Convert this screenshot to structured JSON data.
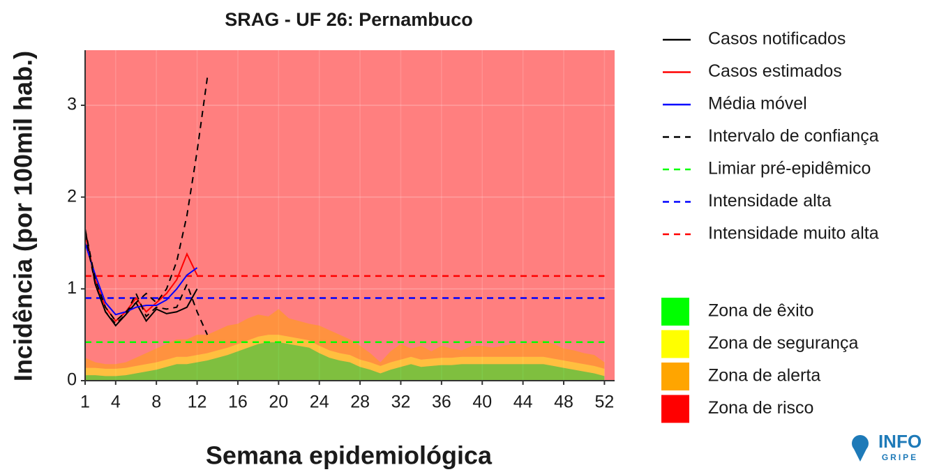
{
  "chart_data": {
    "type": "line",
    "title": "SRAG - UF 26: Pernambuco",
    "xlabel": "Semana epidemiológica",
    "ylabel": "Incidência (por 100mil hab.)",
    "x": [
      1,
      2,
      3,
      4,
      5,
      6,
      7,
      8,
      9,
      10,
      11,
      12,
      13,
      14,
      15,
      16,
      17,
      18,
      19,
      20,
      21,
      22,
      23,
      24,
      25,
      26,
      27,
      28,
      29,
      30,
      31,
      32,
      33,
      34,
      35,
      36,
      37,
      38,
      39,
      40,
      41,
      42,
      43,
      44,
      45,
      46,
      47,
      48,
      49,
      50,
      51,
      52
    ],
    "xlim": [
      1,
      53
    ],
    "xticks": [
      1,
      4,
      8,
      12,
      16,
      20,
      24,
      28,
      32,
      36,
      40,
      44,
      48,
      52
    ],
    "ylim": [
      0,
      3.6
    ],
    "yticks": [
      0,
      1,
      2,
      3
    ],
    "grid": true,
    "legend": "right",
    "series": [
      {
        "name": "Casos notificados",
        "color": "#000000",
        "dashed": false,
        "values": [
          1.65,
          1.05,
          0.75,
          0.6,
          0.72,
          0.85,
          0.65,
          0.78,
          0.73,
          0.75,
          0.8,
          1.0,
          null,
          null,
          null,
          null,
          null,
          null,
          null,
          null,
          null,
          null,
          null,
          null,
          null,
          null,
          null,
          null,
          null,
          null,
          null,
          null,
          null,
          null,
          null,
          null,
          null,
          null,
          null,
          null,
          null,
          null,
          null,
          null,
          null,
          null,
          null,
          null,
          null,
          null,
          null,
          null
        ]
      },
      {
        "name": "Casos estimados",
        "color": "#ff0000",
        "dashed": false,
        "values": [
          1.6,
          1.1,
          0.8,
          0.65,
          0.75,
          0.9,
          0.75,
          0.85,
          0.95,
          1.1,
          1.38,
          1.15,
          null,
          null,
          null,
          null,
          null,
          null,
          null,
          null,
          null,
          null,
          null,
          null,
          null,
          null,
          null,
          null,
          null,
          null,
          null,
          null,
          null,
          null,
          null,
          null,
          null,
          null,
          null,
          null,
          null,
          null,
          null,
          null,
          null,
          null,
          null,
          null,
          null,
          null,
          null,
          null
        ]
      },
      {
        "name": "Média móvel",
        "color": "#0000ff",
        "dashed": false,
        "values": [
          1.5,
          1.15,
          0.85,
          0.72,
          0.75,
          0.8,
          0.82,
          0.82,
          0.88,
          1.0,
          1.15,
          1.23,
          null,
          null,
          null,
          null,
          null,
          null,
          null,
          null,
          null,
          null,
          null,
          null,
          null,
          null,
          null,
          null,
          null,
          null,
          null,
          null,
          null,
          null,
          null,
          null,
          null,
          null,
          null,
          null,
          null,
          null,
          null,
          null,
          null,
          null,
          null,
          null,
          null,
          null,
          null,
          null
        ]
      },
      {
        "name": "Intervalo de confiança",
        "color": "#000000",
        "dashed": true,
        "values": [
          1.65,
          1.1,
          0.8,
          0.65,
          0.75,
          0.85,
          0.95,
          0.85,
          1.0,
          1.3,
          1.8,
          2.5,
          3.3,
          null,
          null,
          null,
          null,
          null,
          null,
          null,
          null,
          null,
          null,
          null,
          null,
          null,
          null,
          null,
          null,
          null,
          null,
          null,
          null,
          null,
          null,
          null,
          null,
          null,
          null,
          null,
          null,
          null,
          null,
          null,
          null,
          null,
          null,
          null,
          null,
          null,
          null,
          null
        ],
        "values_lower": [
          1.6,
          1.05,
          0.75,
          0.62,
          0.72,
          0.95,
          0.7,
          0.8,
          0.78,
          0.8,
          1.05,
          0.75,
          0.5,
          null,
          null,
          null,
          null,
          null,
          null,
          null,
          null,
          null,
          null,
          null,
          null,
          null,
          null,
          null,
          null,
          null,
          null,
          null,
          null,
          null,
          null,
          null,
          null,
          null,
          null,
          null,
          null,
          null,
          null,
          null,
          null,
          null,
          null,
          null,
          null,
          null,
          null,
          null
        ]
      }
    ],
    "thresholds": [
      {
        "name": "Limiar pré-epidêmico",
        "color": "#00ff00",
        "value": 0.42
      },
      {
        "name": "Intensidade alta",
        "color": "#0000ff",
        "value": 0.9
      },
      {
        "name": "Intensidade muito alta",
        "color": "#ff0000",
        "value": 1.14
      }
    ],
    "zones": [
      {
        "name": "Zona de êxito",
        "color": "#00ff00",
        "values": [
          0.06,
          0.06,
          0.05,
          0.05,
          0.06,
          0.08,
          0.1,
          0.12,
          0.15,
          0.18,
          0.18,
          0.2,
          0.22,
          0.25,
          0.28,
          0.32,
          0.36,
          0.4,
          0.42,
          0.42,
          0.4,
          0.38,
          0.36,
          0.3,
          0.25,
          0.22,
          0.2,
          0.15,
          0.12,
          0.08,
          0.12,
          0.15,
          0.18,
          0.15,
          0.16,
          0.17,
          0.17,
          0.18,
          0.18,
          0.18,
          0.18,
          0.18,
          0.18,
          0.18,
          0.18,
          0.18,
          0.16,
          0.14,
          0.12,
          0.1,
          0.08,
          0.05
        ]
      },
      {
        "name": "Zona de segurança",
        "color": "#ffff00",
        "values": [
          0.08,
          0.08,
          0.08,
          0.08,
          0.08,
          0.08,
          0.08,
          0.08,
          0.08,
          0.08,
          0.08,
          0.08,
          0.08,
          0.08,
          0.08,
          0.08,
          0.08,
          0.08,
          0.08,
          0.08,
          0.08,
          0.08,
          0.08,
          0.08,
          0.08,
          0.08,
          0.08,
          0.08,
          0.08,
          0.08,
          0.08,
          0.08,
          0.08,
          0.08,
          0.08,
          0.08,
          0.08,
          0.08,
          0.08,
          0.08,
          0.08,
          0.08,
          0.08,
          0.08,
          0.08,
          0.08,
          0.08,
          0.08,
          0.08,
          0.08,
          0.08,
          0.08
        ]
      },
      {
        "name": "Zona de alerta",
        "color": "#ffa500",
        "values": [
          0.11,
          0.06,
          0.05,
          0.05,
          0.06,
          0.09,
          0.12,
          0.15,
          0.17,
          0.19,
          0.19,
          0.22,
          0.2,
          0.22,
          0.24,
          0.22,
          0.24,
          0.24,
          0.2,
          0.28,
          0.2,
          0.19,
          0.18,
          0.22,
          0.22,
          0.2,
          0.17,
          0.15,
          0.1,
          0.04,
          0.12,
          0.17,
          0.09,
          0.15,
          0.08,
          0.13,
          0.1,
          0.07,
          0.12,
          0.12,
          0.1,
          0.12,
          0.14,
          0.14,
          0.16,
          0.18,
          0.16,
          0.13,
          0.13,
          0.12,
          0.12,
          0.07
        ]
      },
      {
        "name": "Zona de risco",
        "color": "#ff0000"
      }
    ],
    "logo": {
      "top": "INFO",
      "bottom": "GRIPE"
    }
  }
}
